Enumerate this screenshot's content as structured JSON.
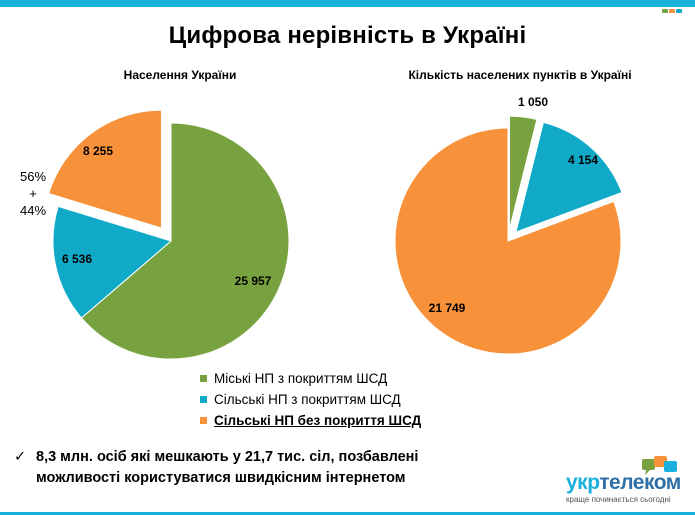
{
  "title": "Цифрова нерівність в Україні",
  "colors": {
    "green": "#77A23F",
    "teal": "#10A9C8",
    "orange": "#F7923A",
    "accent_bar": "#19B0DC"
  },
  "chart_data": [
    {
      "type": "pie",
      "title": "Населення України",
      "categories": [
        "Міські НП з покриттям ШСД",
        "Сільські НП з покриттям ШСД",
        "Сільські НП без покриття ШСД"
      ],
      "values": [
        25957,
        6536,
        8255
      ],
      "labels": [
        "25 957",
        "6 536",
        "8 255"
      ],
      "exploded": [
        false,
        false,
        true
      ],
      "annotation": [
        "56%",
        "+",
        "44%"
      ]
    },
    {
      "type": "pie",
      "title": "Кількість населених пунктів в Україні",
      "categories": [
        "Міські НП з покриттям ШСД",
        "Сільські НП з покриттям ШСД",
        "Сільські НП без покриття ШСД"
      ],
      "values": [
        1050,
        4154,
        21749
      ],
      "labels": [
        "1 050",
        "4 154",
        "21 749"
      ],
      "exploded": [
        true,
        true,
        false
      ]
    }
  ],
  "legend": [
    {
      "label": "Міські НП з покриттям ШСД",
      "emphasis": false
    },
    {
      "label": "Сільські НП з покриттям ШСД",
      "emphasis": false
    },
    {
      "label": "Сільські НП без  покриття ШСД",
      "emphasis": true
    }
  ],
  "bullet": {
    "check": "✓",
    "line1": "8,3 млн. осіб які мешкають у 21,7 тис. сіл, позбавлені",
    "line2": "можливості користуватися швидкісним інтернетом"
  },
  "logo": {
    "word_part1": "укр",
    "word_part2": "телеком",
    "tagline": "краще починається сьогодні"
  }
}
